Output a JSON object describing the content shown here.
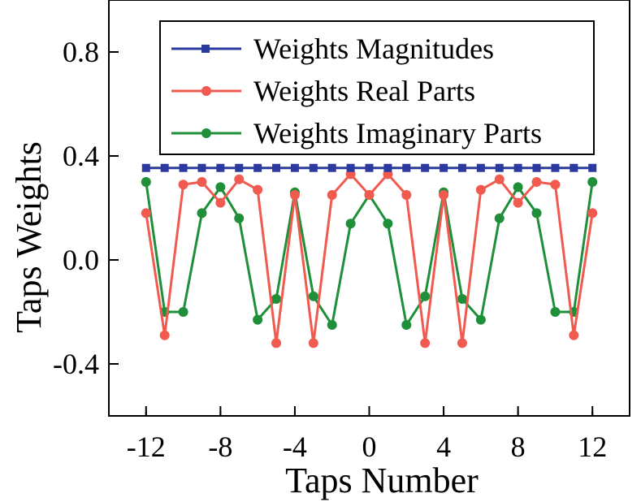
{
  "chart_data": {
    "type": "line",
    "xlabel": "Taps Number",
    "ylabel": "Taps Weights",
    "xlim": [
      -14,
      14
    ],
    "ylim": [
      -0.6,
      1.0
    ],
    "xticks": [
      -12,
      -8,
      -4,
      0,
      4,
      8,
      12
    ],
    "xtick_labels": [
      "-12",
      "-8",
      "-4",
      "0",
      "4",
      "8",
      "12"
    ],
    "yticks": [
      -0.4,
      0.0,
      0.4,
      0.8
    ],
    "ytick_labels": [
      "-0.4",
      "0.0",
      "0.4",
      "0.8"
    ],
    "legend_placement": "top-center",
    "grid": false,
    "x": [
      -12,
      -11,
      -10,
      -9,
      -8,
      -7,
      -6,
      -5,
      -4,
      -3,
      -2,
      -1,
      0,
      1,
      2,
      3,
      4,
      5,
      6,
      7,
      8,
      9,
      10,
      11,
      12
    ],
    "series": [
      {
        "name": "Weights Magnitudes",
        "color": "#2b3a9e",
        "marker": "square",
        "values": [
          0.354,
          0.354,
          0.354,
          0.354,
          0.354,
          0.354,
          0.354,
          0.354,
          0.354,
          0.354,
          0.354,
          0.354,
          0.354,
          0.354,
          0.354,
          0.354,
          0.354,
          0.354,
          0.354,
          0.354,
          0.354,
          0.354,
          0.354,
          0.354,
          0.354
        ]
      },
      {
        "name": "Weights Real Parts",
        "color": "#f05a4f",
        "marker": "circle",
        "values": [
          0.18,
          -0.29,
          0.29,
          0.3,
          0.22,
          0.31,
          0.27,
          -0.32,
          0.25,
          -0.32,
          0.25,
          0.33,
          0.25,
          0.33,
          0.25,
          -0.32,
          0.25,
          -0.32,
          0.27,
          0.31,
          0.22,
          0.3,
          0.29,
          -0.29,
          0.18
        ]
      },
      {
        "name": "Weights Imaginary Parts",
        "color": "#1f8f3a",
        "marker": "circle",
        "values": [
          0.3,
          -0.2,
          -0.2,
          0.18,
          0.28,
          0.16,
          -0.23,
          -0.15,
          0.26,
          -0.14,
          -0.25,
          0.14,
          0.25,
          0.14,
          -0.25,
          -0.14,
          0.26,
          -0.15,
          -0.23,
          0.16,
          0.28,
          0.18,
          -0.2,
          -0.2,
          0.3
        ]
      }
    ]
  }
}
